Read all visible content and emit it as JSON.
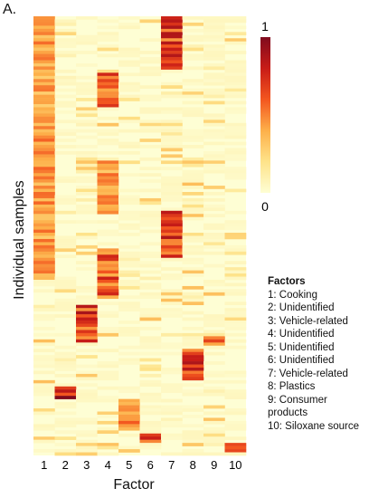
{
  "panel_label": "A.",
  "chart_data": {
    "type": "heatmap",
    "title": "",
    "xlabel": "Factor",
    "ylabel": "Individual samples",
    "x_categories": [
      "1",
      "2",
      "3",
      "4",
      "5",
      "6",
      "7",
      "8",
      "9",
      "10"
    ],
    "colorbar": {
      "min": 0,
      "max": 1,
      "tick_labels": [
        "1",
        "0"
      ],
      "colors": [
        "#fefed4",
        "#fee38a",
        "#fdb04a",
        "#f3561f",
        "#c81c17",
        "#800b1e"
      ]
    },
    "legend": {
      "title": "Factors",
      "items": [
        "1: Cooking",
        "2: Unidentified",
        "3: Vehicle-related",
        "4: Unidentified",
        "5: Unidentified",
        "6: Unidentified",
        "7: Vehicle-related",
        "8: Plastics",
        "9: Consumer products",
        "10: Siloxane source"
      ]
    },
    "approximate_high_regions": [
      {
        "factor": "1",
        "sample_range": [
          0.0,
          0.6
        ],
        "level": 0.5
      },
      {
        "factor": "2",
        "sample_range": [
          0.84,
          0.87
        ],
        "level": 0.9
      },
      {
        "factor": "3",
        "sample_range": [
          0.66,
          0.74
        ],
        "level": 0.8
      },
      {
        "factor": "4",
        "sample_range": [
          0.13,
          0.21
        ],
        "level": 0.7
      },
      {
        "factor": "4",
        "sample_range": [
          0.33,
          0.45
        ],
        "level": 0.5
      },
      {
        "factor": "4",
        "sample_range": [
          0.53,
          0.64
        ],
        "level": 0.7
      },
      {
        "factor": "5",
        "sample_range": [
          0.87,
          0.94
        ],
        "level": 0.6
      },
      {
        "factor": "6",
        "sample_range": [
          0.95,
          0.97
        ],
        "level": 0.8
      },
      {
        "factor": "7",
        "sample_range": [
          0.0,
          0.12
        ],
        "level": 0.8
      },
      {
        "factor": "7",
        "sample_range": [
          0.44,
          0.55
        ],
        "level": 0.8
      },
      {
        "factor": "8",
        "sample_range": [
          0.76,
          0.83
        ],
        "level": 0.8
      },
      {
        "factor": "9",
        "sample_range": [
          0.73,
          0.75
        ],
        "level": 0.7
      },
      {
        "factor": "10",
        "sample_range": [
          0.97,
          0.99
        ],
        "level": 0.9
      }
    ]
  }
}
